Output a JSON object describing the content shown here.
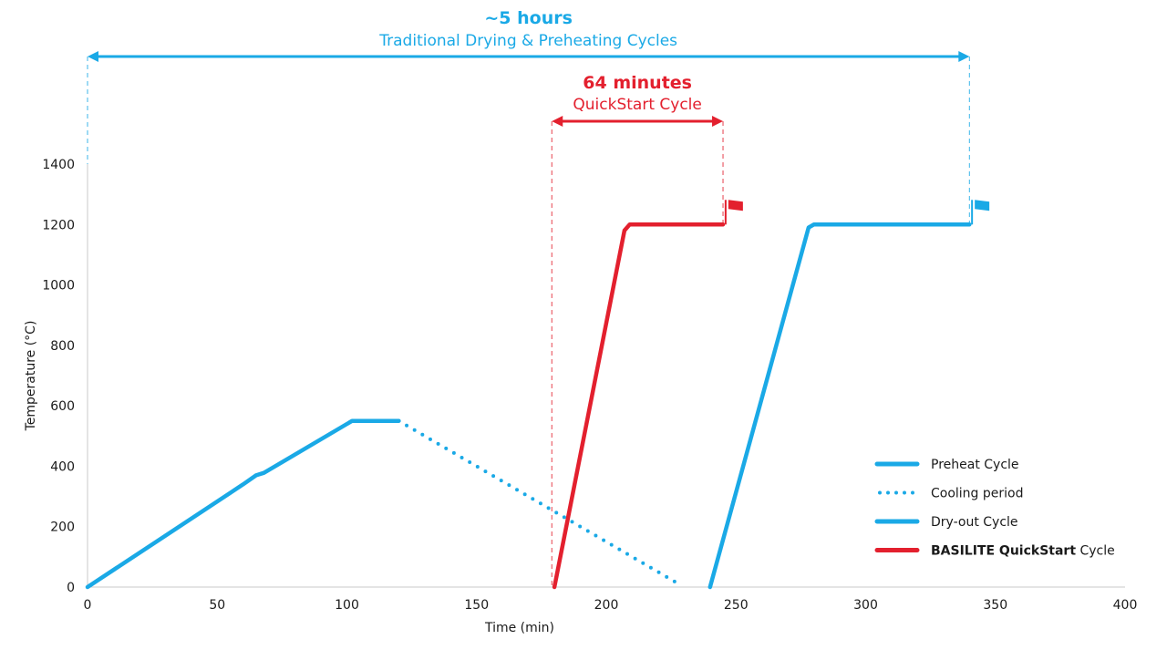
{
  "chart_data": {
    "type": "line",
    "xlabel": "Time (min)",
    "ylabel": "Temperature (°C)",
    "xlim": [
      0,
      400
    ],
    "ylim": [
      0,
      1400
    ],
    "x_ticks": [
      0,
      50,
      100,
      150,
      200,
      250,
      300,
      350,
      400
    ],
    "y_ticks": [
      0,
      200,
      400,
      600,
      800,
      1000,
      1200,
      1400
    ],
    "grid": false,
    "legend_position": "bottom-right",
    "colors": {
      "blue": "#1aa9e6",
      "red": "#e3202e"
    },
    "series": [
      {
        "name": "Preheat Cycle",
        "style": "solid",
        "color": "#1aa9e6",
        "x": [
          0,
          30,
          60,
          65,
          68,
          102,
          120
        ],
        "y": [
          0,
          170,
          340,
          370,
          378,
          550,
          550
        ]
      },
      {
        "name": "Cooling period",
        "style": "dotted",
        "color": "#1aa9e6",
        "x": [
          120,
          228
        ],
        "y": [
          550,
          10
        ]
      },
      {
        "name": "Dry-out Cycle",
        "style": "solid",
        "color": "#1aa9e6",
        "x": [
          240,
          278,
          280,
          340
        ],
        "y": [
          0,
          1190,
          1200,
          1200
        ]
      },
      {
        "name_parts": [
          [
            "BASILITE QuickStart",
            "bold"
          ],
          [
            " Cycle",
            "normal"
          ]
        ],
        "style": "solid",
        "color": "#e3202e",
        "x": [
          180,
          207,
          209,
          245
        ],
        "y": [
          0,
          1180,
          1200,
          1200
        ]
      }
    ],
    "annotations": [
      {
        "id": "traditional",
        "value": "~5 hours",
        "label": "Traditional Drying & Preheating Cycles",
        "color": "#1aa9e6",
        "x_start": 0,
        "x_end": 340
      },
      {
        "id": "quickstart",
        "value": "64 minutes",
        "label": "QuickStart Cycle",
        "color": "#e3202e",
        "x_start": 179,
        "x_end": 245
      }
    ],
    "flags": [
      {
        "x": 246,
        "y": 1200,
        "color": "#e3202e"
      },
      {
        "x": 341,
        "y": 1200,
        "color": "#1aa9e6"
      }
    ]
  }
}
